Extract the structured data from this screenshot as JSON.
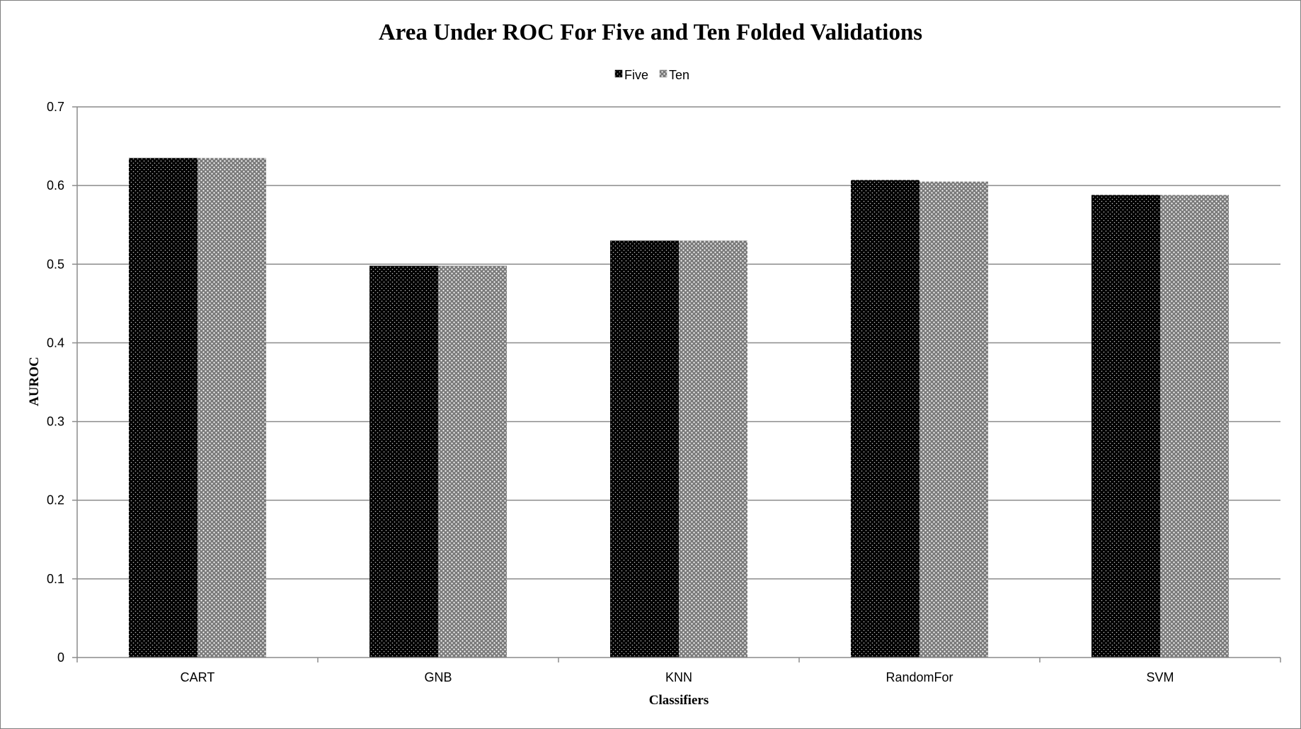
{
  "chart_data": {
    "type": "bar",
    "title": "Area Under ROC For Five and Ten Folded Validations",
    "xlabel": "Classifiers",
    "ylabel": "AUROC",
    "categories": [
      "CART",
      "GNB",
      "KNN",
      "RandomFor",
      "SVM"
    ],
    "series": [
      {
        "name": "Five",
        "values": [
          0.635,
          0.498,
          0.53,
          0.607,
          0.588
        ],
        "color": "#000000",
        "pattern": "dots-on-black"
      },
      {
        "name": "Ten",
        "values": [
          0.635,
          0.498,
          0.53,
          0.605,
          0.588
        ],
        "color": "#808080",
        "pattern": "dots-on-gray"
      }
    ],
    "ylim": [
      0,
      0.7
    ],
    "yticks": [
      "0",
      "0.1",
      "0.2",
      "0.3",
      "0.4",
      "0.5",
      "0.6",
      "0.7"
    ],
    "ytick_values": [
      0,
      0.1,
      0.2,
      0.3,
      0.4,
      0.5,
      0.6,
      0.7
    ],
    "grid": true,
    "legend_position": "top-center"
  }
}
